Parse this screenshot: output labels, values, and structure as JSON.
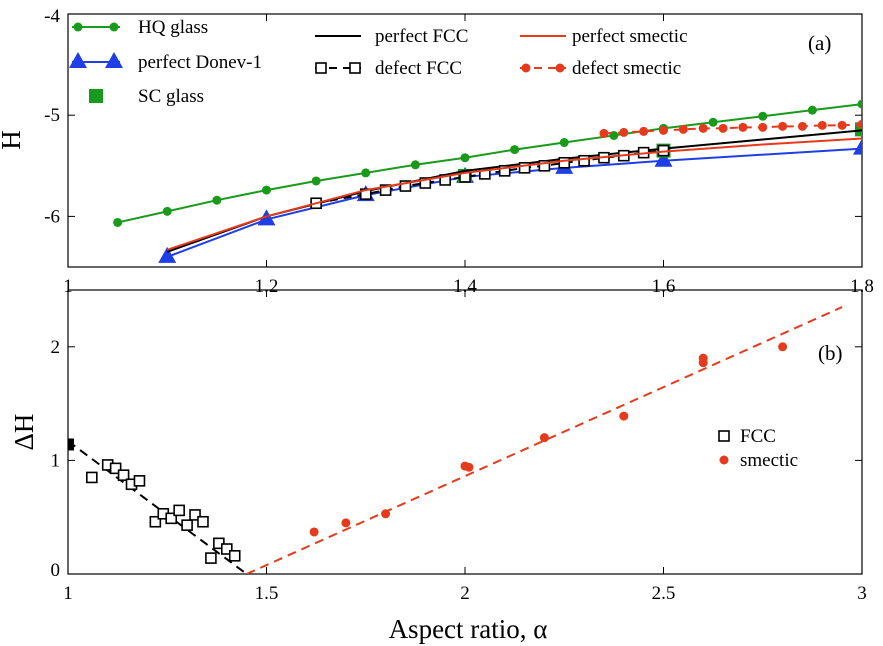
{
  "chart_data": [
    {
      "type": "line",
      "panel_label": "(a)",
      "ylabel": "H",
      "xlabel": "",
      "xlim": [
        1,
        1.8
      ],
      "ylim": [
        -6.5,
        -4
      ],
      "x_ticks": [
        "1",
        "1.2",
        "1.4",
        "1.6",
        "1.8"
      ],
      "y_ticks": [
        "-4",
        "-5",
        "-6"
      ],
      "grid": false,
      "legend_placement": "top",
      "series": [
        {
          "name": "HQ glass",
          "color": "#1a9a1a",
          "style": "solid",
          "marker": "circle",
          "x": [
            1.05,
            1.1,
            1.15,
            1.2,
            1.25,
            1.3,
            1.35,
            1.4,
            1.45,
            1.5,
            1.55,
            1.6,
            1.65,
            1.7,
            1.75,
            1.8
          ],
          "y": [
            -6.06,
            -5.95,
            -5.84,
            -5.74,
            -5.65,
            -5.57,
            -5.49,
            -5.42,
            -5.34,
            -5.27,
            -5.2,
            -5.13,
            -5.07,
            -5.01,
            -4.95,
            -4.89
          ]
        },
        {
          "name": "perfect Donev-1",
          "color": "#1f3ee6",
          "style": "solid",
          "marker": "triangle",
          "x": [
            1.1,
            1.2,
            1.3,
            1.4,
            1.5,
            1.6,
            1.8
          ],
          "y": [
            -6.4,
            -6.03,
            -5.79,
            -5.61,
            -5.52,
            -5.45,
            -5.33
          ]
        },
        {
          "name": "SC glass",
          "color": "#1a9a1a",
          "style": "none",
          "marker": "square",
          "x": [
            1.4,
            1.6,
            1.8
          ],
          "y": [
            -5.6,
            -5.35,
            -5.14
          ]
        },
        {
          "name": "perfect FCC",
          "color": "#000000",
          "style": "solid",
          "marker": "none",
          "x": [
            1.1,
            1.2,
            1.3,
            1.4,
            1.5,
            1.6,
            1.7,
            1.8
          ],
          "y": [
            -6.35,
            -6.0,
            -5.75,
            -5.55,
            -5.43,
            -5.33,
            -5.24,
            -5.15
          ]
        },
        {
          "name": "defect FCC",
          "color": "#000000",
          "style": "dashed",
          "marker": "open-square",
          "x": [
            1.25,
            1.3,
            1.32,
            1.34,
            1.36,
            1.38,
            1.4,
            1.42,
            1.44,
            1.46,
            1.48,
            1.5,
            1.52,
            1.54,
            1.56,
            1.58,
            1.6
          ],
          "y": [
            -5.87,
            -5.78,
            -5.74,
            -5.7,
            -5.67,
            -5.64,
            -5.61,
            -5.58,
            -5.55,
            -5.52,
            -5.5,
            -5.47,
            -5.45,
            -5.42,
            -5.4,
            -5.37,
            -5.35
          ]
        },
        {
          "name": "perfect smectic",
          "color": "#e53b1c",
          "style": "solid",
          "marker": "none",
          "x": [
            1.1,
            1.2,
            1.3,
            1.4,
            1.5,
            1.6,
            1.7,
            1.8
          ],
          "y": [
            -6.33,
            -6.0,
            -5.74,
            -5.57,
            -5.45,
            -5.36,
            -5.29,
            -5.23
          ]
        },
        {
          "name": "defect smectic",
          "color": "#e53b1c",
          "style": "dashed",
          "marker": "circle",
          "x": [
            1.54,
            1.56,
            1.58,
            1.6,
            1.62,
            1.64,
            1.66,
            1.68,
            1.7,
            1.72,
            1.74,
            1.76,
            1.78,
            1.8
          ],
          "y": [
            -5.18,
            -5.17,
            -5.16,
            -5.15,
            -5.14,
            -5.13,
            -5.13,
            -5.12,
            -5.12,
            -5.11,
            -5.11,
            -5.1,
            -5.1,
            -5.09
          ]
        }
      ]
    },
    {
      "type": "scatter",
      "panel_label": "(b)",
      "ylabel": "ΔH",
      "xlabel": "Aspect ratio, α",
      "xlim": [
        1,
        3
      ],
      "ylim": [
        0,
        2.5
      ],
      "x_ticks": [
        "1",
        "1.5",
        "2",
        "2.5",
        "3"
      ],
      "y_ticks": [
        "0",
        "1",
        "2"
      ],
      "grid": false,
      "legend_placement": "right",
      "series": [
        {
          "name": "FCC",
          "color": "#000000",
          "marker": "open-square",
          "x": [
            1.06,
            1.1,
            1.12,
            1.14,
            1.16,
            1.18,
            1.22,
            1.24,
            1.26,
            1.28,
            1.3,
            1.32,
            1.34,
            1.36,
            1.38,
            1.4,
            1.42
          ],
          "y": [
            0.85,
            0.96,
            0.93,
            0.87,
            0.79,
            0.82,
            0.46,
            0.53,
            0.49,
            0.56,
            0.43,
            0.52,
            0.46,
            0.14,
            0.27,
            0.22,
            0.16
          ]
        },
        {
          "name": "",
          "color": "#000000",
          "marker": "filled-square",
          "x": [
            1.0
          ],
          "y": [
            1.14
          ]
        },
        {
          "name": "smectic",
          "color": "#e53b1c",
          "marker": "circle",
          "x": [
            1.62,
            1.7,
            1.8,
            2.0,
            2.01,
            2.2,
            2.4,
            2.6,
            2.6,
            2.8
          ],
          "y": [
            0.37,
            0.45,
            0.53,
            0.95,
            0.94,
            1.2,
            1.39,
            1.86,
            1.9,
            2.0
          ]
        }
      ],
      "fits": [
        {
          "color": "#000000",
          "x": [
            1.0,
            1.45
          ],
          "y": [
            1.17,
            0.0
          ]
        },
        {
          "color": "#e53b1c",
          "x": [
            1.45,
            2.95
          ],
          "y": [
            0.0,
            2.35
          ]
        }
      ]
    }
  ]
}
